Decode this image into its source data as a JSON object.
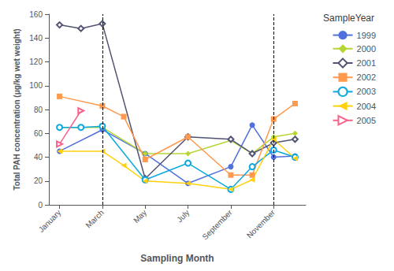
{
  "chart_data": {
    "type": "line",
    "xlabel": "Sampling Month",
    "ylabel": "Total PAH concentration (μg/kg wet weight)",
    "legend_title": "SampleYear",
    "legend": "right",
    "grid": false,
    "xlim": [
      0.5,
      12.5
    ],
    "xticks": [
      {
        "value": 1,
        "label": "January"
      },
      {
        "value": 3,
        "label": "March"
      },
      {
        "value": 5,
        "label": "May"
      },
      {
        "value": 7,
        "label": "July"
      },
      {
        "value": 9,
        "label": "September"
      },
      {
        "value": 11,
        "label": "November"
      }
    ],
    "ylim": [
      0,
      160
    ],
    "yticks": [
      0,
      20,
      40,
      60,
      80,
      100,
      120,
      140,
      160
    ],
    "vlines": [
      3,
      11
    ],
    "series": [
      {
        "name": "1999",
        "marker": "circle",
        "x": [
          1,
          3,
          5,
          7,
          9,
          10,
          11,
          12
        ],
        "values": [
          45,
          63,
          43,
          18,
          32,
          67,
          40,
          41
        ]
      },
      {
        "name": "2000",
        "marker": "diamond",
        "x": [
          1,
          3,
          5,
          7,
          9,
          10,
          11,
          12
        ],
        "values": [
          65,
          65,
          43,
          43,
          54,
          43,
          57,
          60
        ]
      },
      {
        "name": "2001",
        "marker": "hollow-diamond",
        "x": [
          1,
          2,
          3,
          5,
          7,
          9,
          10,
          11,
          12
        ],
        "values": [
          151,
          148,
          152,
          22,
          57,
          55,
          43,
          52,
          55
        ]
      },
      {
        "name": "2002",
        "marker": "square",
        "x": [
          1,
          3,
          4,
          5,
          7,
          9,
          10,
          11,
          12
        ],
        "values": [
          91,
          83,
          74,
          38,
          57,
          25,
          25,
          72,
          85
        ]
      },
      {
        "name": "2003",
        "marker": "hollow-circle",
        "x": [
          1,
          2,
          3,
          5,
          7,
          9,
          10,
          11,
          12
        ],
        "values": [
          65,
          65,
          66,
          21,
          35,
          13,
          32,
          46,
          40
        ]
      },
      {
        "name": "2004",
        "marker": "triangle-left",
        "x": [
          1,
          3,
          4,
          5,
          7,
          9,
          10,
          11,
          12
        ],
        "values": [
          45,
          45,
          33,
          20,
          18,
          13,
          21,
          55,
          39
        ]
      },
      {
        "name": "2005",
        "marker": "hollow-triangle-right",
        "x": [
          1,
          2
        ],
        "values": [
          51,
          79
        ]
      }
    ]
  }
}
